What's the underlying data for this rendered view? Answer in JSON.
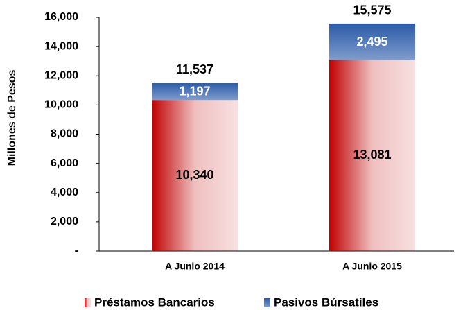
{
  "chart_data": {
    "type": "stacked_bar",
    "ylabel": "Millones de Pesos",
    "categories": [
      "A Junio 2014",
      "A Junio 2015"
    ],
    "series": [
      {
        "name": "Préstamos Bancarios",
        "color": "#c00000",
        "values": [
          10340,
          13081
        ],
        "value_labels": [
          "10,340",
          "13,081"
        ]
      },
      {
        "name": "Pasivos Búrsatiles",
        "color": "#2a5aa8",
        "values": [
          1197,
          2495
        ],
        "value_labels": [
          "1,197",
          "2,495"
        ]
      }
    ],
    "totals": [
      11537,
      15575
    ],
    "total_labels": [
      "11,537",
      "15,575"
    ],
    "ylim": [
      0,
      16000
    ],
    "yticks": [
      {
        "value": 0,
        "label": "-"
      },
      {
        "value": 2000,
        "label": "2,000"
      },
      {
        "value": 4000,
        "label": "4,000"
      },
      {
        "value": 6000,
        "label": "6,000"
      },
      {
        "value": 8000,
        "label": "8,000"
      },
      {
        "value": 10000,
        "label": "10,000"
      },
      {
        "value": 12000,
        "label": "12,000"
      },
      {
        "value": 14000,
        "label": "14,000"
      },
      {
        "value": 16000,
        "label": "16,000"
      }
    ],
    "grid": false,
    "legend": "bottom"
  }
}
